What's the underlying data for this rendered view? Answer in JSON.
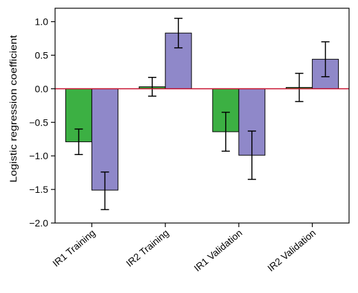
{
  "chart_data": {
    "type": "bar",
    "title": "",
    "xlabel": "",
    "ylabel": "Logistic regression coefficient",
    "ylim": [
      -2.0,
      1.2
    ],
    "yticks": [
      1.0,
      0.5,
      0.0,
      -0.5,
      -1.0,
      -1.5,
      -2.0
    ],
    "ytick_labels": [
      "1.0",
      "0.5",
      "0.0",
      "−0.5",
      "−1.0",
      "−1.5",
      "−2.0"
    ],
    "grid": false,
    "legend": "none",
    "reference_line": {
      "y": 0.0,
      "color": "#c8102e"
    },
    "categories": [
      "IR1 Training",
      "IR2 Training",
      "IR1 Validation",
      "IR2 Validation"
    ],
    "series": [
      {
        "color": "#3cb043",
        "values": [
          -0.79,
          0.03,
          -0.64,
          0.02
        ],
        "error_low": [
          -0.98,
          -0.11,
          -0.93,
          -0.19
        ],
        "error_high": [
          -0.6,
          0.17,
          -0.35,
          0.23
        ]
      },
      {
        "color": "#8f88c9",
        "values": [
          -1.51,
          0.83,
          -0.99,
          0.44
        ],
        "error_low": [
          -1.8,
          0.61,
          -1.35,
          0.18
        ],
        "error_high": [
          -1.24,
          1.05,
          -0.63,
          0.7
        ]
      }
    ]
  }
}
